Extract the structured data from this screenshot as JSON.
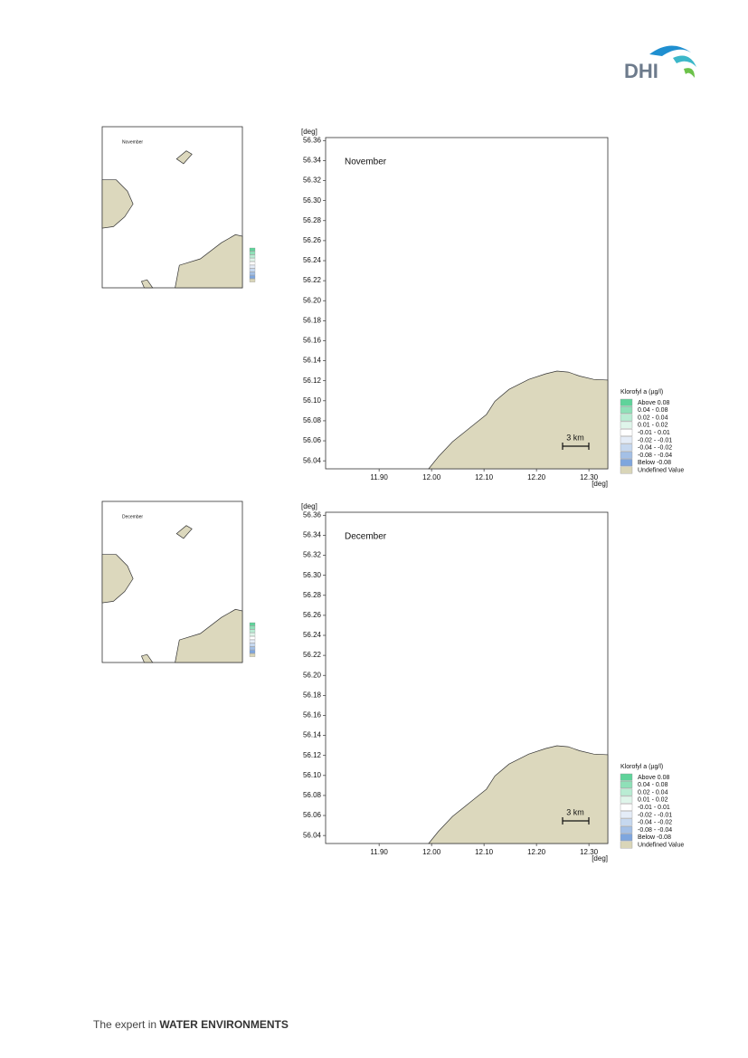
{
  "header": {
    "logo": "DHI"
  },
  "panels": [
    {
      "title": "November",
      "map": {
        "y_unit": "[deg]",
        "x_unit": "[deg]",
        "xlim": [
          11.798,
          12.336
        ],
        "ylim": [
          56.032,
          56.363
        ],
        "yticks": [
          {
            "value": 56.04,
            "label": "56.04"
          },
          {
            "value": 56.06,
            "label": "56.06"
          },
          {
            "value": 56.08,
            "label": "56.08"
          },
          {
            "value": 56.1,
            "label": "56.10"
          },
          {
            "value": 56.12,
            "label": "56.12"
          },
          {
            "value": 56.14,
            "label": "56.14"
          },
          {
            "value": 56.16,
            "label": "56.16"
          },
          {
            "value": 56.18,
            "label": "56.18"
          },
          {
            "value": 56.2,
            "label": "56.20"
          },
          {
            "value": 56.22,
            "label": "56.22"
          },
          {
            "value": 56.24,
            "label": "56.24"
          },
          {
            "value": 56.26,
            "label": "56.26"
          },
          {
            "value": 56.28,
            "label": "56.28"
          },
          {
            "value": 56.3,
            "label": "56.30"
          },
          {
            "value": 56.32,
            "label": "56.32"
          },
          {
            "value": 56.34,
            "label": "56.34"
          },
          {
            "value": 56.36,
            "label": "56.36"
          }
        ],
        "xticks": [
          {
            "value": 11.9,
            "label": "11.90"
          },
          {
            "value": 12.0,
            "label": "12.00"
          },
          {
            "value": 12.1,
            "label": "12.10"
          },
          {
            "value": 12.2,
            "label": "12.20"
          },
          {
            "value": 12.3,
            "label": "12.30"
          }
        ],
        "scale_label": "3 km"
      },
      "legend": {
        "title": "Klorofyl a (µg/l)",
        "items": [
          {
            "label": "Above  0.08",
            "color": "#5fd39a"
          },
          {
            "label": "0.04 - 0.08",
            "color": "#8fe0b8"
          },
          {
            "label": "0.02 - 0.04",
            "color": "#b9ecd3"
          },
          {
            "label": "0.01 - 0.02",
            "color": "#dff5ea"
          },
          {
            "label": "-0.01 - 0.01",
            "color": "#ffffff"
          },
          {
            "label": "-0.02 - -0.01",
            "color": "#e4ecf7"
          },
          {
            "label": "-0.04 - -0.02",
            "color": "#c6d8ef"
          },
          {
            "label": "-0.08 - -0.04",
            "color": "#a4c0e6"
          },
          {
            "label": "Below -0.08",
            "color": "#7ea6de"
          },
          {
            "label": "Undefined Value",
            "color": "#d9d5b8"
          }
        ]
      }
    },
    {
      "title": "December",
      "map": {
        "y_unit": "[deg]",
        "x_unit": "[deg]",
        "xlim": [
          11.798,
          12.336
        ],
        "ylim": [
          56.032,
          56.363
        ],
        "yticks": [
          {
            "value": 56.04,
            "label": "56.04"
          },
          {
            "value": 56.06,
            "label": "56.06"
          },
          {
            "value": 56.08,
            "label": "56.08"
          },
          {
            "value": 56.1,
            "label": "56.10"
          },
          {
            "value": 56.12,
            "label": "56.12"
          },
          {
            "value": 56.14,
            "label": "56.14"
          },
          {
            "value": 56.16,
            "label": "56.16"
          },
          {
            "value": 56.18,
            "label": "56.18"
          },
          {
            "value": 56.2,
            "label": "56.20"
          },
          {
            "value": 56.22,
            "label": "56.22"
          },
          {
            "value": 56.24,
            "label": "56.24"
          },
          {
            "value": 56.26,
            "label": "56.26"
          },
          {
            "value": 56.28,
            "label": "56.28"
          },
          {
            "value": 56.3,
            "label": "56.30"
          },
          {
            "value": 56.32,
            "label": "56.32"
          },
          {
            "value": 56.34,
            "label": "56.34"
          },
          {
            "value": 56.36,
            "label": "56.36"
          }
        ],
        "xticks": [
          {
            "value": 11.9,
            "label": "11.90"
          },
          {
            "value": 12.0,
            "label": "12.00"
          },
          {
            "value": 12.1,
            "label": "12.10"
          },
          {
            "value": 12.2,
            "label": "12.20"
          },
          {
            "value": 12.3,
            "label": "12.30"
          }
        ],
        "scale_label": "3 km"
      },
      "legend": {
        "title": "Klorofyl a (µg/l)",
        "items": [
          {
            "label": "Above  0.08",
            "color": "#5fd39a"
          },
          {
            "label": "0.04 - 0.08",
            "color": "#8fe0b8"
          },
          {
            "label": "0.02 - 0.04",
            "color": "#b9ecd3"
          },
          {
            "label": "0.01 - 0.02",
            "color": "#dff5ea"
          },
          {
            "label": "-0.01 - 0.01",
            "color": "#ffffff"
          },
          {
            "label": "-0.02 - -0.01",
            "color": "#e4ecf7"
          },
          {
            "label": "-0.04 - -0.02",
            "color": "#c6d8ef"
          },
          {
            "label": "-0.08 - -0.04",
            "color": "#a4c0e6"
          },
          {
            "label": "Below -0.08",
            "color": "#7ea6de"
          },
          {
            "label": "Undefined Value",
            "color": "#d9d5b8"
          }
        ]
      }
    }
  ],
  "footer": {
    "lead": "The expert in ",
    "emphasis": "WATER ENVIRONMENTS"
  }
}
